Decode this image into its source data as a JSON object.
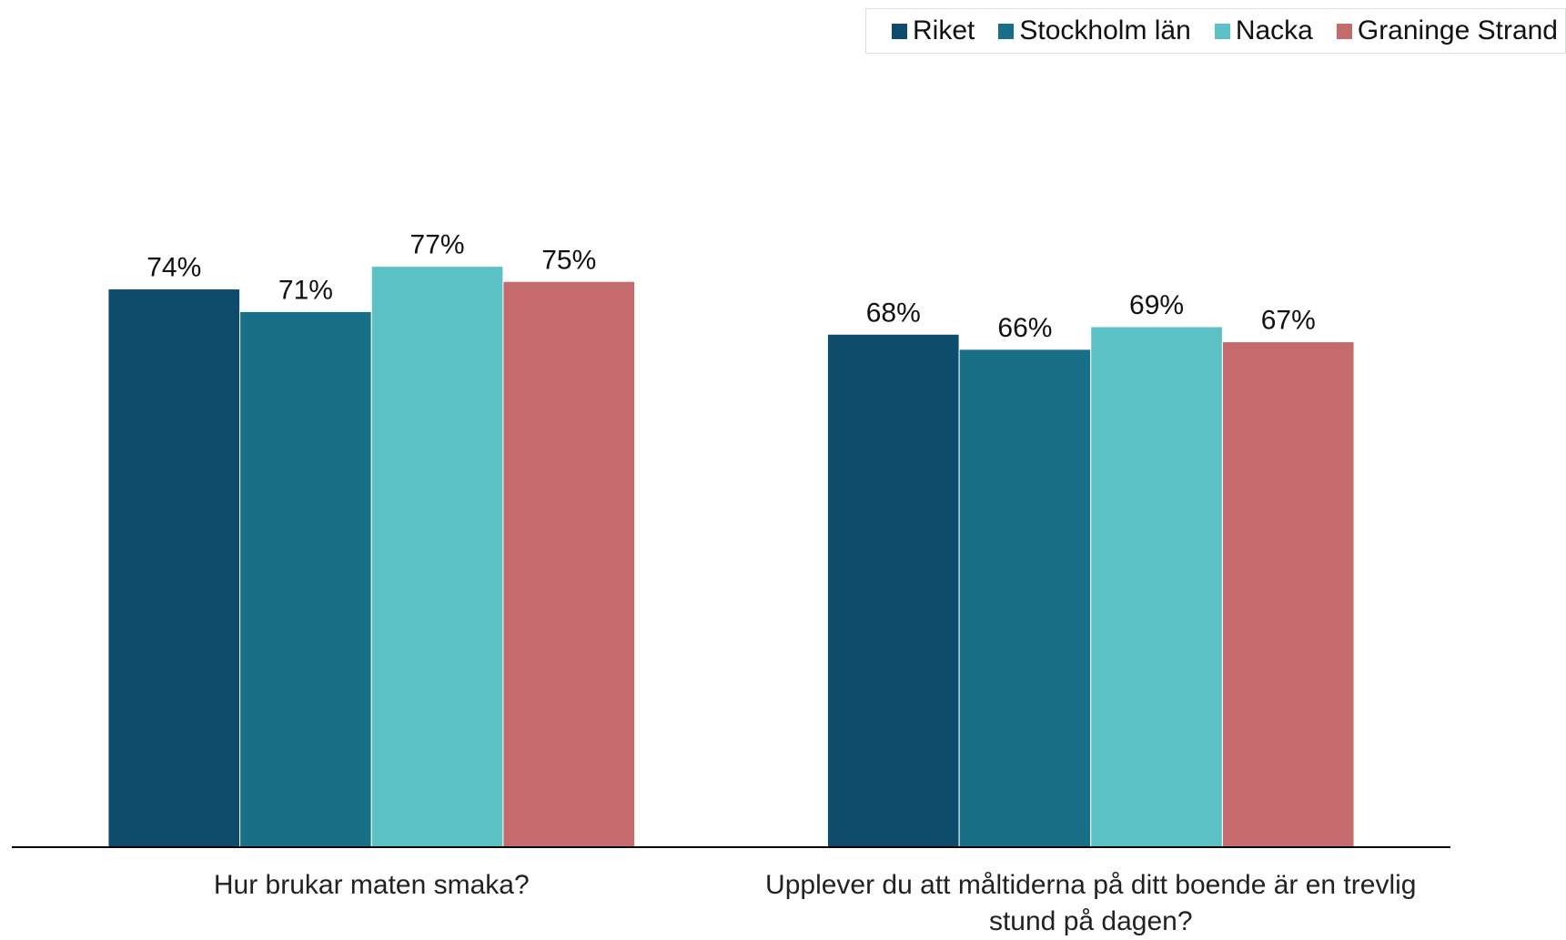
{
  "chart_data": {
    "type": "bar",
    "categories": [
      "Hur brukar maten smaka?",
      "Upplever du att måltiderna på ditt boende är en trevlig stund på dagen?"
    ],
    "series": [
      {
        "name": "Riket",
        "color": "#0d4d6b",
        "values": [
          74,
          68
        ],
        "value_labels": [
          "74%",
          "68%"
        ]
      },
      {
        "name": "Stockholm län",
        "color": "#186f87",
        "values": [
          71,
          66
        ],
        "value_labels": [
          "71%",
          "66%"
        ]
      },
      {
        "name": "Nacka",
        "color": "#5bc1c4",
        "values": [
          77,
          69
        ],
        "value_labels": [
          "77%",
          "69%"
        ]
      },
      {
        "name": "Graninge Strand",
        "color": "#c56a6d",
        "values": [
          75,
          67
        ],
        "value_labels": [
          "75%",
          "67%"
        ]
      }
    ],
    "ylim": [
      0,
      100
    ],
    "legend": "top-right"
  }
}
